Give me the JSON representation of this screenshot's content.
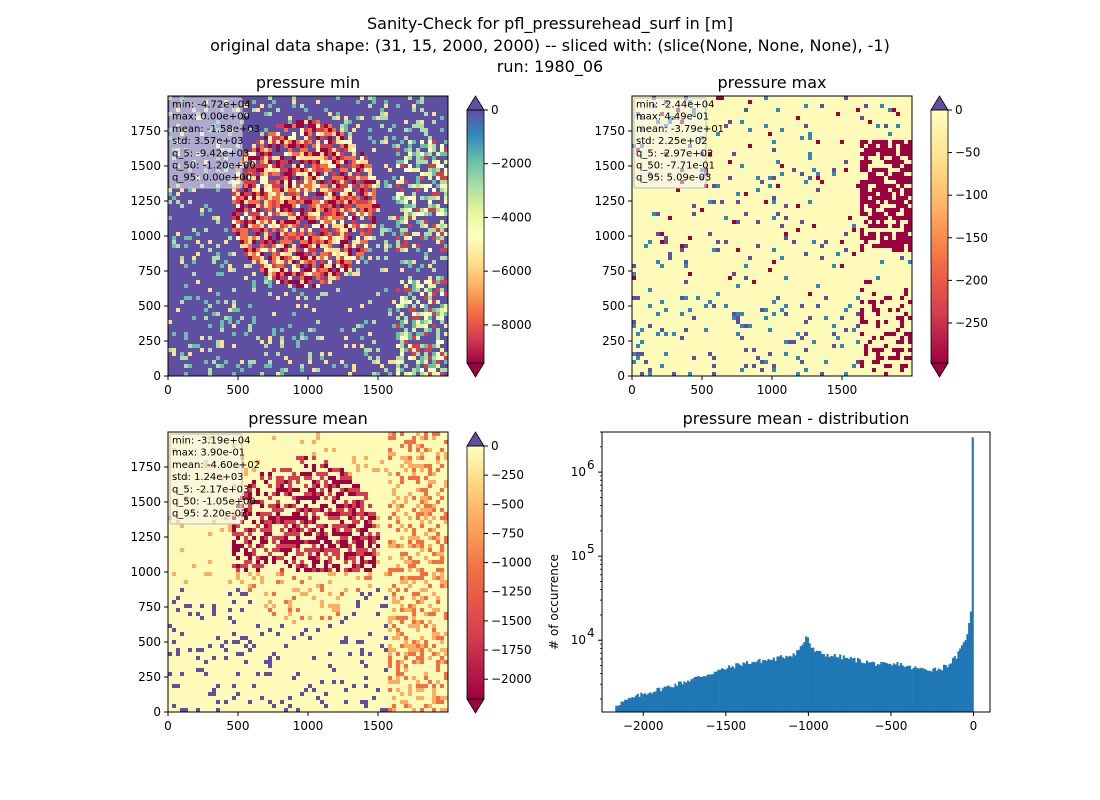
{
  "figure": {
    "title_lines": [
      "Sanity-Check for pfl_pressurehead_surf in [m]",
      "original data shape: (31, 15, 2000, 2000) -- sliced with: (slice(None, None, None), -1)",
      "run: 1980_06"
    ]
  },
  "chart_data": [
    {
      "type": "heatmap",
      "title": "pressure min",
      "xlim": [
        0,
        2000
      ],
      "ylim": [
        0,
        2000
      ],
      "xticks": [
        0,
        500,
        1000,
        1500
      ],
      "yticks": [
        0,
        250,
        500,
        750,
        1000,
        1250,
        1500,
        1750
      ],
      "colormap": "Spectral",
      "colorbar": {
        "vmin": -9420,
        "vmax": 0,
        "ticks": [
          "0",
          "−2000",
          "−4000",
          "−6000",
          "−8000"
        ],
        "tick_values": [
          0,
          -2000,
          -4000,
          -6000,
          -8000
        ],
        "extend": "both"
      },
      "stats": [
        "min: -4.72e+04",
        "max: 0.00e+00",
        "mean: -1.58e+03",
        "std: 3.57e+03",
        "q_5: -9.42e+03",
        "q_50: -1.20e+00",
        "q_95: 0.00e+00"
      ],
      "background_color": "#5e4fa2"
    },
    {
      "type": "heatmap",
      "title": "pressure max",
      "xlim": [
        0,
        2000
      ],
      "ylim": [
        0,
        2000
      ],
      "xticks": [
        0,
        500,
        1000,
        1500
      ],
      "yticks": [
        0,
        250,
        500,
        750,
        1000,
        1250,
        1500,
        1750
      ],
      "colormap": "Spectral",
      "colorbar": {
        "vmin": -297,
        "vmax": 0,
        "ticks": [
          "0",
          "−50",
          "−100",
          "−150",
          "−200",
          "−250"
        ],
        "tick_values": [
          0,
          -50,
          -100,
          -150,
          -200,
          -250
        ],
        "extend": "both"
      },
      "stats": [
        "min: -2.44e+04",
        "max: 4.49e-01",
        "mean: -3.79e+01",
        "std: 2.25e+02",
        "q_5: -2.97e+02",
        "q_50: -7.71e-01",
        "q_95: 5.09e-03"
      ],
      "background_color": "#fefab8"
    },
    {
      "type": "heatmap",
      "title": "pressure mean",
      "xlim": [
        0,
        2000
      ],
      "ylim": [
        0,
        2000
      ],
      "xticks": [
        0,
        500,
        1000,
        1500
      ],
      "yticks": [
        0,
        250,
        500,
        750,
        1000,
        1250,
        1500,
        1750
      ],
      "colormap": "Spectral",
      "colorbar": {
        "vmin": -2170,
        "vmax": 0,
        "ticks": [
          "0",
          "−250",
          "−500",
          "−750",
          "−1000",
          "−1250",
          "−1500",
          "−1750",
          "−2000"
        ],
        "tick_values": [
          0,
          -250,
          -500,
          -750,
          -1000,
          -1250,
          -1500,
          -1750,
          -2000
        ],
        "extend": "both"
      },
      "stats": [
        "min: -3.19e+04",
        "max: 3.90e-01",
        "mean: -4.60e+02",
        "std: 1.24e+03",
        "q_5: -2.17e+03",
        "q_50: -1.05e+00",
        "q_95: 2.20e-03"
      ],
      "background_color": "#fefab8"
    },
    {
      "type": "histogram",
      "title": "pressure mean - distribution",
      "ylabel": "# of occurrence",
      "xlim": [
        -2250,
        100
      ],
      "ylim": [
        1400,
        3000000
      ],
      "yscale": "log",
      "xticks": [
        -2000,
        -1500,
        -1000,
        -500,
        0
      ],
      "yticks": [
        10000,
        100000,
        1000000
      ],
      "ytick_labels": [
        "10",
        "10",
        "10"
      ],
      "ytick_exponents": [
        "4",
        "5",
        "6"
      ],
      "bar_color": "#1f77b4",
      "profile": [
        [
          -2170,
          1700
        ],
        [
          -2000,
          2300
        ],
        [
          -1800,
          3000
        ],
        [
          -1600,
          4000
        ],
        [
          -1400,
          5300
        ],
        [
          -1200,
          6000
        ],
        [
          -1080,
          7000
        ],
        [
          -1030,
          9000
        ],
        [
          -1010,
          12000
        ],
        [
          -995,
          9500
        ],
        [
          -980,
          8000
        ],
        [
          -950,
          7200
        ],
        [
          -900,
          6800
        ],
        [
          -800,
          6300
        ],
        [
          -700,
          5800
        ],
        [
          -600,
          5300
        ],
        [
          -500,
          5000
        ],
        [
          -450,
          5300
        ],
        [
          -400,
          4800
        ],
        [
          -300,
          4500
        ],
        [
          -200,
          4600
        ],
        [
          -150,
          5200
        ],
        [
          -100,
          6500
        ],
        [
          -60,
          9000
        ],
        [
          -30,
          14000
        ],
        [
          -15,
          22000
        ],
        [
          -8,
          34000
        ],
        [
          -2,
          2600000
        ]
      ]
    }
  ]
}
